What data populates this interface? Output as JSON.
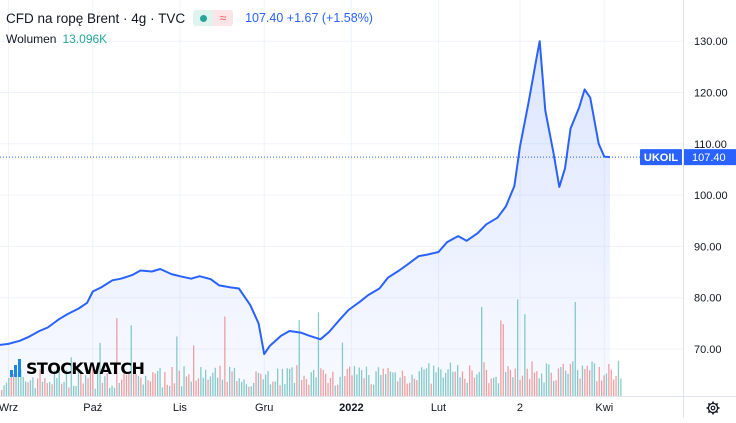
{
  "header": {
    "symbol_title": "CFD na ropę Brent · 4g · TVC",
    "price": "107.40",
    "change": "+1.67 (+1.58%)",
    "volume_label": "Wolumen",
    "volume_value": "13.096K"
  },
  "logo_text": "STOCKWATCH",
  "colors": {
    "line": "#2962ff",
    "area_top": "rgba(41,98,255,0.16)",
    "area_bottom": "rgba(41,98,255,0.03)",
    "vol_up": "#26a69a",
    "vol_down": "#ef5350",
    "last_label_bg": "#2962ff"
  },
  "chart_data": {
    "type": "area",
    "title": "CFD na ropę Brent · 4g · TVC",
    "series_label": "UKOIL",
    "last_value": "107.40",
    "y_ticks": [
      "130.00",
      "120.00",
      "110.00",
      "100.00",
      "90.00",
      "80.00",
      "70.00"
    ],
    "ylim": [
      62,
      133
    ],
    "x_tick_labels": [
      "Wrz",
      "Paź",
      "Lis",
      "Gru",
      "2022",
      "Lut",
      "2",
      "Kwi"
    ],
    "x_tick_dates": [
      "2021-09-01",
      "2021-10-01",
      "2021-11-01",
      "2021-12-01",
      "2022-01-01",
      "2022-02-01",
      "2022-03-02",
      "2022-04-01"
    ],
    "xlim": [
      "2021-08-29",
      "2022-04-29"
    ],
    "x": [
      "2021-08-29",
      "2021-09-01",
      "2021-09-05",
      "2021-09-08",
      "2021-09-12",
      "2021-09-15",
      "2021-09-19",
      "2021-09-22",
      "2021-09-26",
      "2021-09-29",
      "2021-10-01",
      "2021-10-04",
      "2021-10-08",
      "2021-10-11",
      "2021-10-15",
      "2021-10-18",
      "2021-10-22",
      "2021-10-25",
      "2021-10-29",
      "2021-11-01",
      "2021-11-05",
      "2021-11-08",
      "2021-11-12",
      "2021-11-15",
      "2021-11-19",
      "2021-11-22",
      "2021-11-26",
      "2021-11-29",
      "2021-12-01",
      "2021-12-03",
      "2021-12-07",
      "2021-12-10",
      "2021-12-14",
      "2021-12-17",
      "2021-12-21",
      "2021-12-24",
      "2021-12-28",
      "2021-12-31",
      "2022-01-04",
      "2022-01-07",
      "2022-01-11",
      "2022-01-14",
      "2022-01-18",
      "2022-01-21",
      "2022-01-25",
      "2022-01-28",
      "2022-02-01",
      "2022-02-04",
      "2022-02-08",
      "2022-02-11",
      "2022-02-15",
      "2022-02-18",
      "2022-02-22",
      "2022-02-25",
      "2022-02-28",
      "2022-03-02",
      "2022-03-05",
      "2022-03-08",
      "2022-03-09",
      "2022-03-11",
      "2022-03-14",
      "2022-03-16",
      "2022-03-18",
      "2022-03-20",
      "2022-03-23",
      "2022-03-25",
      "2022-03-27",
      "2022-03-30",
      "2022-04-01",
      "2022-04-03"
    ],
    "y": [
      70.8,
      71.0,
      71.6,
      72.3,
      73.5,
      74.2,
      75.8,
      76.8,
      77.9,
      79.0,
      81.2,
      82.0,
      83.4,
      83.7,
      84.4,
      85.3,
      85.1,
      85.6,
      84.6,
      84.2,
      83.7,
      84.2,
      83.6,
      82.4,
      82.0,
      81.8,
      78.6,
      75.0,
      69.0,
      70.6,
      72.6,
      73.5,
      73.2,
      72.6,
      71.9,
      73.3,
      75.8,
      77.6,
      79.2,
      80.5,
      81.8,
      83.9,
      85.3,
      86.5,
      88.1,
      88.4,
      88.9,
      90.8,
      92.0,
      91.1,
      92.6,
      94.3,
      95.6,
      97.8,
      101.8,
      109.5,
      117.9,
      127.0,
      130.0,
      116.5,
      108.0,
      101.6,
      105.2,
      113.0,
      117.0,
      120.6,
      119.0,
      110.0,
      107.5,
      107.4
    ],
    "volume": "per-bar volume histogram at the bottom of the pane (values not labeled)"
  }
}
